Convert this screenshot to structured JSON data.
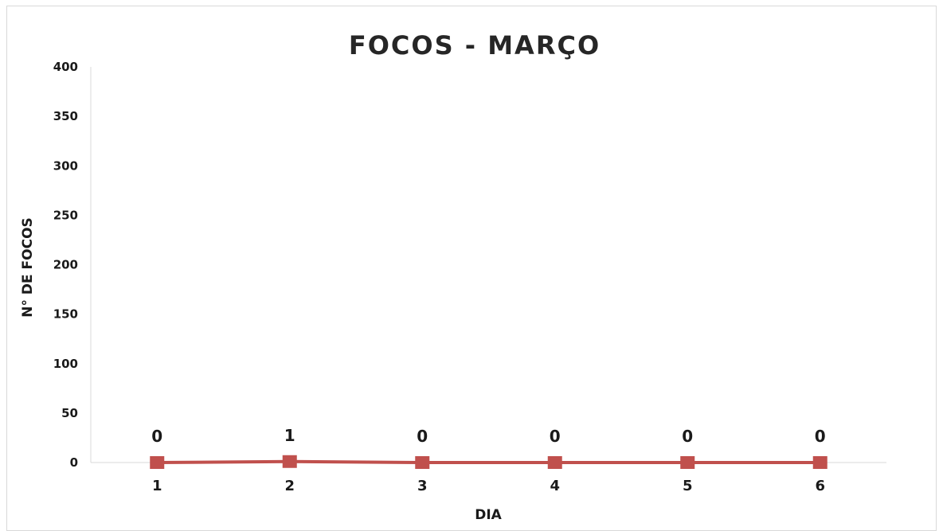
{
  "chart_data": {
    "type": "line",
    "title": "FOCOS  - MARÇO",
    "xlabel": "DIA",
    "ylabel": "N° DE FOCOS",
    "categories": [
      "1",
      "2",
      "3",
      "4",
      "5",
      "6"
    ],
    "series": [
      {
        "values": [
          0,
          1,
          0,
          0,
          0,
          0
        ],
        "color": "#c0504d",
        "marker": "square"
      }
    ],
    "data_labels": [
      "0",
      "1",
      "0",
      "0",
      "0",
      "0"
    ],
    "ylim": [
      0,
      400
    ],
    "yticks": [
      "0",
      "50",
      "100",
      "150",
      "200",
      "250",
      "300",
      "350",
      "400"
    ],
    "grid": false,
    "legend": "none"
  }
}
